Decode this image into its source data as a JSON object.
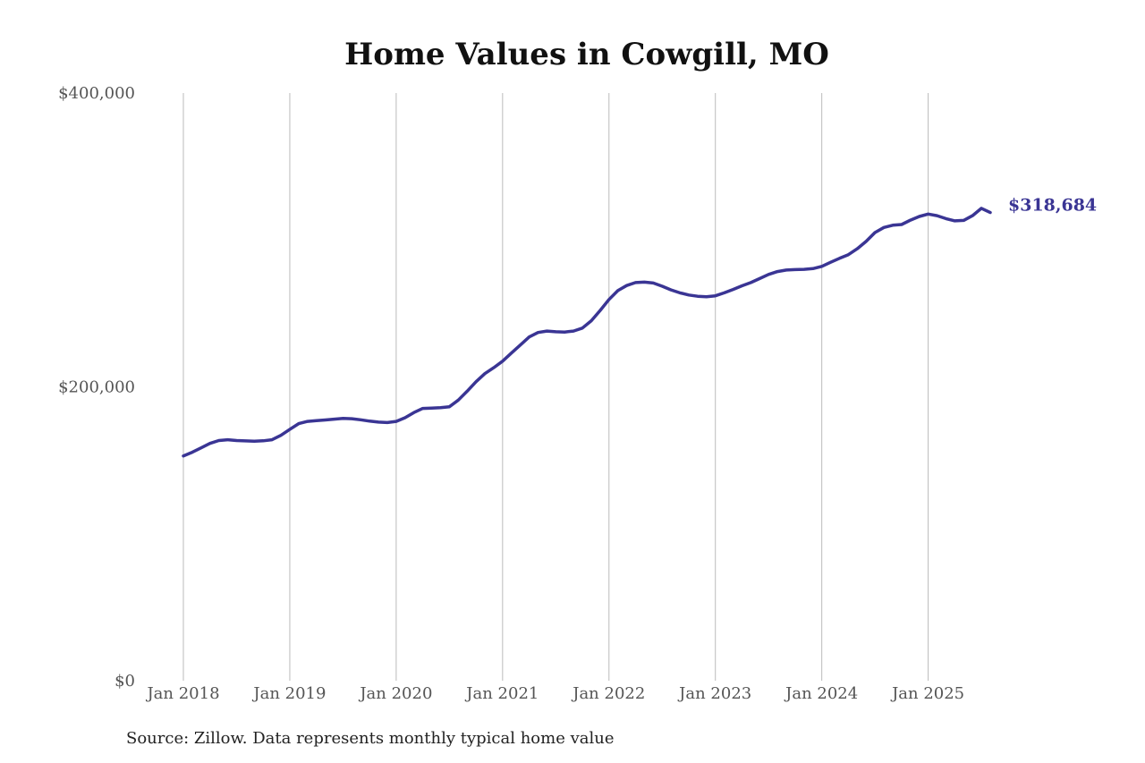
{
  "chart_data": {
    "type": "line",
    "title": "Home Values in Cowgill, MO",
    "xlabel": "",
    "ylabel": "",
    "ylim": [
      0,
      400000
    ],
    "y_ticks": [
      {
        "value": 0,
        "label": "$0"
      },
      {
        "value": 200000,
        "label": "$200,000"
      },
      {
        "value": 400000,
        "label": "$400,000"
      }
    ],
    "x_ticks": [
      {
        "value": "2018-01",
        "label": "Jan 2018"
      },
      {
        "value": "2019-01",
        "label": "Jan 2019"
      },
      {
        "value": "2020-01",
        "label": "Jan 2020"
      },
      {
        "value": "2021-01",
        "label": "Jan 2021"
      },
      {
        "value": "2022-01",
        "label": "Jan 2022"
      },
      {
        "value": "2023-01",
        "label": "Jan 2023"
      },
      {
        "value": "2024-01",
        "label": "Jan 2024"
      },
      {
        "value": "2025-01",
        "label": "Jan 2025"
      }
    ],
    "grid": "vertical",
    "series": [
      {
        "color": "#3a3594",
        "x": [
          "2018-01",
          "2018-02",
          "2018-03",
          "2018-04",
          "2018-05",
          "2018-06",
          "2018-07",
          "2018-08",
          "2018-09",
          "2018-10",
          "2018-11",
          "2018-12",
          "2019-01",
          "2019-02",
          "2019-03",
          "2019-04",
          "2019-05",
          "2019-06",
          "2019-07",
          "2019-08",
          "2019-09",
          "2019-10",
          "2019-11",
          "2019-12",
          "2020-01",
          "2020-02",
          "2020-03",
          "2020-04",
          "2020-05",
          "2020-06",
          "2020-07",
          "2020-08",
          "2020-09",
          "2020-10",
          "2020-11",
          "2020-12",
          "2021-01",
          "2021-02",
          "2021-03",
          "2021-04",
          "2021-05",
          "2021-06",
          "2021-07",
          "2021-08",
          "2021-09",
          "2021-10",
          "2021-11",
          "2021-12",
          "2022-01",
          "2022-02",
          "2022-03",
          "2022-04",
          "2022-05",
          "2022-06",
          "2022-07",
          "2022-08",
          "2022-09",
          "2022-10",
          "2022-11",
          "2022-12",
          "2023-01",
          "2023-02",
          "2023-03",
          "2023-04",
          "2023-05",
          "2023-06",
          "2023-07",
          "2023-08",
          "2023-09",
          "2023-10",
          "2023-11",
          "2023-12",
          "2024-01",
          "2024-02",
          "2024-03",
          "2024-04",
          "2024-05",
          "2024-06",
          "2024-07",
          "2024-08",
          "2024-09",
          "2024-10",
          "2024-11",
          "2024-12",
          "2025-01",
          "2025-02",
          "2025-03",
          "2025-04",
          "2025-05",
          "2025-06",
          "2025-07",
          "2025-08"
        ],
        "values": [
          153000,
          155500,
          158500,
          161500,
          163500,
          164000,
          163500,
          163200,
          163000,
          163300,
          164000,
          167000,
          171000,
          175000,
          176500,
          177000,
          177500,
          178000,
          178500,
          178300,
          177600,
          176700,
          176000,
          175700,
          176500,
          179000,
          182500,
          185300,
          185500,
          185800,
          186500,
          191000,
          197000,
          203500,
          209000,
          213000,
          217500,
          223000,
          228500,
          234000,
          237000,
          238000,
          237500,
          237300,
          238000,
          240000,
          245000,
          252000,
          259500,
          265500,
          269000,
          271000,
          271300,
          270700,
          268500,
          266000,
          264000,
          262500,
          261700,
          261400,
          262000,
          264000,
          266300,
          268800,
          271000,
          273700,
          276500,
          278500,
          279500,
          279800,
          280000,
          280500,
          282000,
          284800,
          287500,
          290000,
          294000,
          299000,
          305000,
          308500,
          310000,
          310500,
          313500,
          316000,
          317600,
          316500,
          314500,
          313000,
          313300,
          316500,
          321500,
          318684
        ],
        "end_label": "$318,684"
      }
    ]
  },
  "source": "Source: Zillow. Data represents monthly typical home value"
}
